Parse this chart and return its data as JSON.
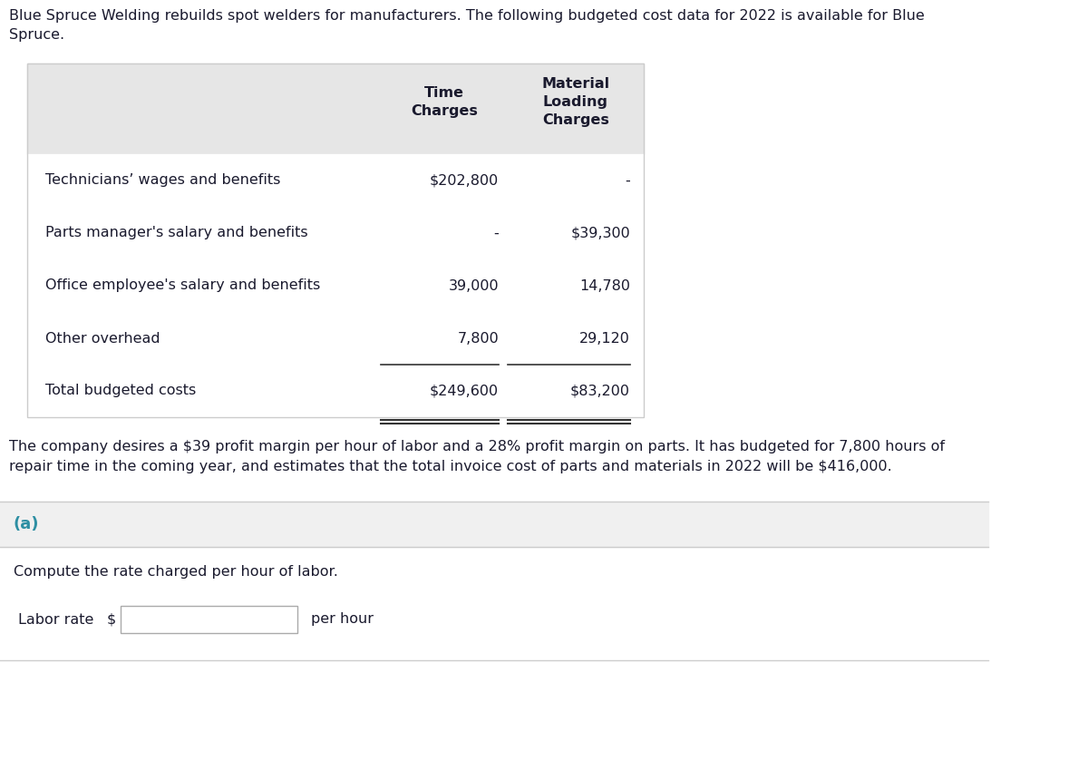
{
  "intro_text": "Blue Spruce Welding rebuilds spot welders for manufacturers. The following budgeted cost data for 2022 is available for Blue\nSpruce.",
  "table_header_col2": "Time\nCharges",
  "table_header_col3": "Material\nLoading\nCharges",
  "table_rows": [
    [
      "Technicians’ wages and benefits",
      "$202,800",
      "-"
    ],
    [
      "Parts manager's salary and benefits",
      "-",
      "$39,300"
    ],
    [
      "Office employee's salary and benefits",
      "39,000",
      "14,780"
    ],
    [
      "Other overhead",
      "7,800",
      "29,120"
    ],
    [
      "Total budgeted costs",
      "$249,600",
      "$83,200"
    ]
  ],
  "paragraph_text": "The company desires a $39 profit margin per hour of labor and a 28% profit margin on parts. It has budgeted for 7,800 hours of\nrepair time in the coming year, and estimates that the total invoice cost of parts and materials in 2022 will be $416,000.",
  "section_label": "(a)",
  "section_label_color": "#2e8fa3",
  "instruction_text": "Compute the rate charged per hour of labor.",
  "labor_rate_label": "Labor rate",
  "dollar_sign": "$",
  "per_hour_label": "per hour",
  "bg_color": "#ffffff",
  "table_header_bg": "#e6e6e6",
  "section_bg": "#f0f0f0",
  "sep_color": "#cccccc",
  "text_color": "#1a1a2e",
  "table_font_size": 11.5,
  "header_font_size": 11.5,
  "intro_font_size": 11.5,
  "para_font_size": 11.5
}
